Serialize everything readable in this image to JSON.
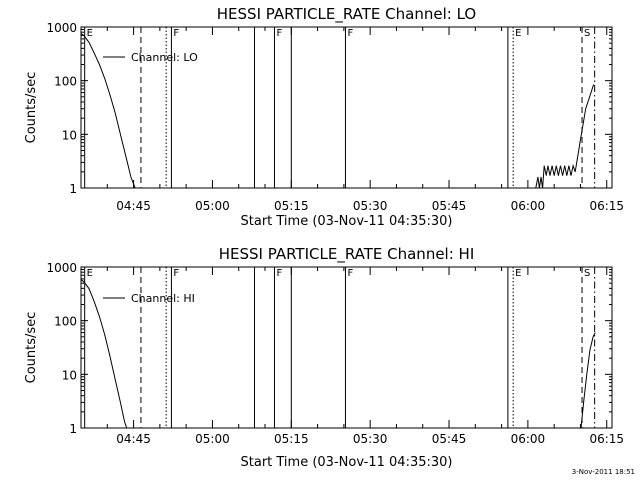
{
  "footer": {
    "timestamp": "3-Nov-2011 18:51"
  },
  "chart_data": [
    {
      "type": "line",
      "title": "HESSI PARTICLE_RATE Channel: LO",
      "xlabel": "Start Time (03-Nov-11 04:35:30)",
      "ylabel": "Counts/sec",
      "yscale": "log",
      "xlim_minutes": [
        275,
        376
      ],
      "ylim": [
        1,
        1000
      ],
      "x_ticks": [
        {
          "minute": 285,
          "label": "04:45"
        },
        {
          "minute": 300,
          "label": "05:00"
        },
        {
          "minute": 315,
          "label": "05:15"
        },
        {
          "minute": 330,
          "label": "05:30"
        },
        {
          "minute": 345,
          "label": "05:45"
        },
        {
          "minute": 360,
          "label": "06:00"
        },
        {
          "minute": 375,
          "label": "06:15"
        }
      ],
      "y_ticks": [
        {
          "value": 1,
          "label": "1"
        },
        {
          "value": 10,
          "label": "10"
        },
        {
          "value": 100,
          "label": "100"
        },
        {
          "value": 1000,
          "label": "1000"
        }
      ],
      "legend": "Channel: LO",
      "series": [
        {
          "points": [
            [
              275.0,
              750
            ],
            [
              275.5,
              700
            ],
            [
              276.5,
              520
            ],
            [
              277.5,
              330
            ],
            [
              278.5,
              200
            ],
            [
              279.5,
              110
            ],
            [
              280.5,
              55
            ],
            [
              281.5,
              25
            ],
            [
              282.5,
              10
            ],
            [
              283.5,
              4
            ],
            [
              284.5,
              1.6
            ],
            [
              285.3,
              1.0
            ]
          ]
        },
        {
          "points": [
            [
              361.5,
              1.0
            ],
            [
              361.9,
              1.6
            ],
            [
              362.2,
              1.0
            ],
            [
              362.5,
              1.6
            ],
            [
              362.8,
              1.0
            ],
            [
              363.1,
              2.6
            ],
            [
              363.5,
              1.7
            ],
            [
              363.8,
              2.6
            ],
            [
              364.2,
              1.7
            ],
            [
              364.6,
              2.6
            ],
            [
              365.0,
              1.7
            ],
            [
              365.4,
              2.6
            ],
            [
              365.8,
              1.7
            ],
            [
              366.2,
              2.6
            ],
            [
              366.6,
              1.7
            ],
            [
              367.0,
              2.6
            ],
            [
              367.4,
              1.7
            ],
            [
              367.8,
              2.6
            ],
            [
              368.2,
              1.7
            ],
            [
              368.6,
              2.6
            ],
            [
              369.0,
              2.0
            ],
            [
              370.0,
              8
            ],
            [
              371.0,
              30
            ],
            [
              372.0,
              60
            ],
            [
              372.5,
              85
            ]
          ]
        }
      ],
      "markers": [
        {
          "minute": 275.7,
          "style": "solid",
          "label": "E"
        },
        {
          "minute": 286.4,
          "style": "dashed",
          "label": ""
        },
        {
          "minute": 291.2,
          "style": "dotted",
          "label": ""
        },
        {
          "minute": 292.2,
          "style": "solid",
          "label": "F"
        },
        {
          "minute": 308.0,
          "style": "solid",
          "label": ""
        },
        {
          "minute": 311.8,
          "style": "solid",
          "label": "F"
        },
        {
          "minute": 315.0,
          "style": "solid",
          "label": ""
        },
        {
          "minute": 325.3,
          "style": "solid",
          "label": "F"
        },
        {
          "minute": 356.2,
          "style": "solid",
          "label": ""
        },
        {
          "minute": 357.2,
          "style": "dotted",
          "label": "E"
        },
        {
          "minute": 370.3,
          "style": "dashed",
          "label": "S"
        },
        {
          "minute": 372.7,
          "style": "dashdot",
          "label": ""
        }
      ]
    },
    {
      "type": "line",
      "title": "HESSI PARTICLE_RATE Channel: HI",
      "xlabel": "Start Time (03-Nov-11 04:35:30)",
      "ylabel": "Counts/sec",
      "yscale": "log",
      "xlim_minutes": [
        275,
        376
      ],
      "ylim": [
        1,
        1000
      ],
      "x_ticks": [
        {
          "minute": 285,
          "label": "04:45"
        },
        {
          "minute": 300,
          "label": "05:00"
        },
        {
          "minute": 315,
          "label": "05:15"
        },
        {
          "minute": 330,
          "label": "05:30"
        },
        {
          "minute": 345,
          "label": "05:45"
        },
        {
          "minute": 360,
          "label": "06:00"
        },
        {
          "minute": 375,
          "label": "06:15"
        }
      ],
      "y_ticks": [
        {
          "value": 1,
          "label": "1"
        },
        {
          "value": 10,
          "label": "10"
        },
        {
          "value": 100,
          "label": "100"
        },
        {
          "value": 1000,
          "label": "1000"
        }
      ],
      "legend": "Channel: HI",
      "series": [
        {
          "points": [
            [
              275.0,
              580
            ],
            [
              275.5,
              540
            ],
            [
              276.5,
              400
            ],
            [
              277.5,
              230
            ],
            [
              278.5,
              120
            ],
            [
              279.5,
              55
            ],
            [
              280.5,
              22
            ],
            [
              281.5,
              8
            ],
            [
              282.5,
              3
            ],
            [
              283.3,
              1.3
            ],
            [
              283.7,
              1.0
            ]
          ]
        },
        {
          "points": [
            [
              370.1,
              1.0
            ],
            [
              370.6,
              3
            ],
            [
              371.2,
              10
            ],
            [
              371.8,
              28
            ],
            [
              372.4,
              50
            ],
            [
              372.8,
              60
            ]
          ]
        }
      ],
      "markers": [
        {
          "minute": 275.7,
          "style": "solid",
          "label": "E"
        },
        {
          "minute": 286.4,
          "style": "dashed",
          "label": ""
        },
        {
          "minute": 291.2,
          "style": "dotted",
          "label": ""
        },
        {
          "minute": 292.2,
          "style": "solid",
          "label": "F"
        },
        {
          "minute": 308.0,
          "style": "solid",
          "label": ""
        },
        {
          "minute": 311.8,
          "style": "solid",
          "label": "F"
        },
        {
          "minute": 315.0,
          "style": "solid",
          "label": ""
        },
        {
          "minute": 325.3,
          "style": "solid",
          "label": "F"
        },
        {
          "minute": 356.2,
          "style": "solid",
          "label": ""
        },
        {
          "minute": 357.2,
          "style": "dotted",
          "label": "E"
        },
        {
          "minute": 370.3,
          "style": "dashed",
          "label": "S"
        },
        {
          "minute": 372.7,
          "style": "dashdot",
          "label": ""
        }
      ]
    }
  ]
}
